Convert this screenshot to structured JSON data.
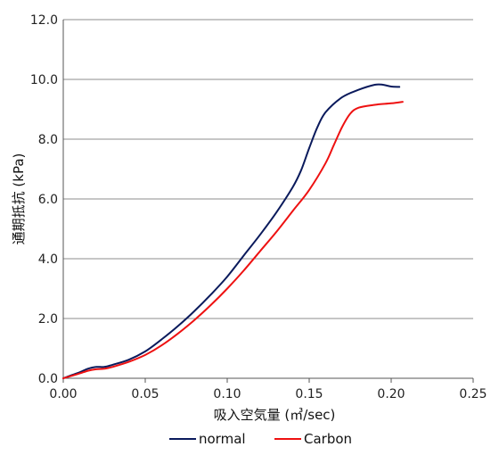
{
  "chart_data": {
    "type": "line",
    "title": "",
    "xlabel": "吸入空気量 (㎥/sec)",
    "ylabel": "通期抵抗 (kPa)",
    "xlim": [
      0,
      0.25
    ],
    "ylim": [
      0,
      12
    ],
    "x_ticks": [
      "0.00",
      "0.05",
      "0.10",
      "0.15",
      "0.20",
      "0.25"
    ],
    "y_ticks": [
      "0.0",
      "2.0",
      "4.0",
      "6.0",
      "8.0",
      "10.0",
      "12.0"
    ],
    "grid": "horizontal",
    "legend_position": "bottom",
    "series": [
      {
        "name": "normal",
        "color": "#0a1a5c",
        "points": [
          [
            0,
            0
          ],
          [
            0.005,
            0.1
          ],
          [
            0.01,
            0.2
          ],
          [
            0.015,
            0.32
          ],
          [
            0.02,
            0.38
          ],
          [
            0.025,
            0.38
          ],
          [
            0.03,
            0.45
          ],
          [
            0.04,
            0.62
          ],
          [
            0.05,
            0.9
          ],
          [
            0.06,
            1.3
          ],
          [
            0.07,
            1.75
          ],
          [
            0.08,
            2.25
          ],
          [
            0.09,
            2.8
          ],
          [
            0.1,
            3.4
          ],
          [
            0.11,
            4.1
          ],
          [
            0.12,
            4.8
          ],
          [
            0.13,
            5.55
          ],
          [
            0.14,
            6.4
          ],
          [
            0.145,
            6.95
          ],
          [
            0.15,
            7.7
          ],
          [
            0.155,
            8.4
          ],
          [
            0.16,
            8.9
          ],
          [
            0.17,
            9.4
          ],
          [
            0.18,
            9.65
          ],
          [
            0.19,
            9.82
          ],
          [
            0.195,
            9.82
          ],
          [
            0.2,
            9.76
          ],
          [
            0.205,
            9.75
          ]
        ]
      },
      {
        "name": "Carbon",
        "color": "#ee1111",
        "points": [
          [
            0,
            0
          ],
          [
            0.005,
            0.08
          ],
          [
            0.01,
            0.16
          ],
          [
            0.015,
            0.25
          ],
          [
            0.02,
            0.3
          ],
          [
            0.025,
            0.32
          ],
          [
            0.03,
            0.38
          ],
          [
            0.04,
            0.55
          ],
          [
            0.05,
            0.78
          ],
          [
            0.06,
            1.1
          ],
          [
            0.07,
            1.5
          ],
          [
            0.08,
            1.95
          ],
          [
            0.09,
            2.45
          ],
          [
            0.1,
            3.0
          ],
          [
            0.11,
            3.6
          ],
          [
            0.12,
            4.25
          ],
          [
            0.13,
            4.9
          ],
          [
            0.14,
            5.6
          ],
          [
            0.15,
            6.3
          ],
          [
            0.16,
            7.2
          ],
          [
            0.165,
            7.8
          ],
          [
            0.17,
            8.4
          ],
          [
            0.175,
            8.85
          ],
          [
            0.18,
            9.05
          ],
          [
            0.19,
            9.15
          ],
          [
            0.2,
            9.2
          ],
          [
            0.207,
            9.25
          ]
        ]
      }
    ]
  }
}
